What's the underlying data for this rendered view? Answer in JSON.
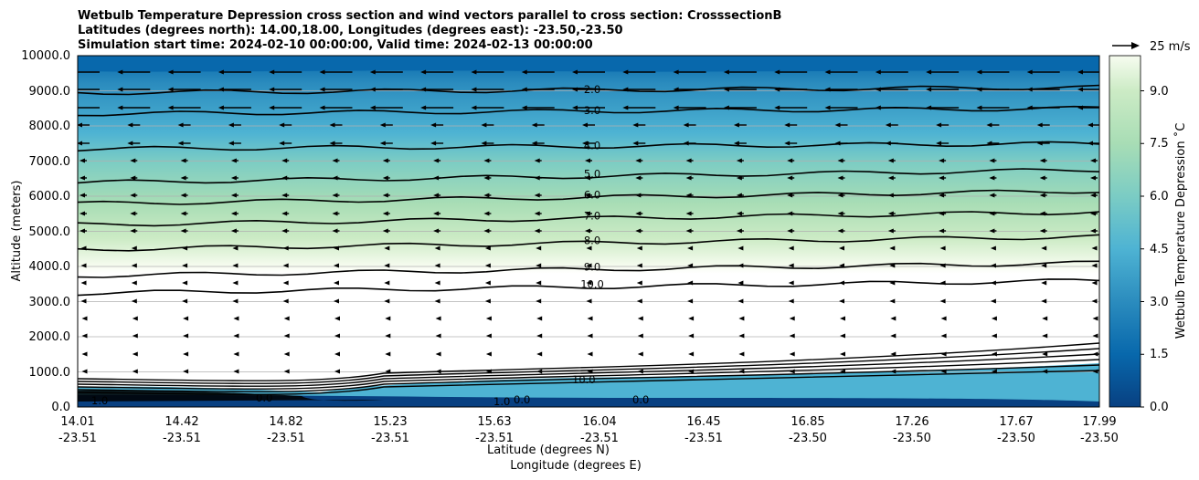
{
  "chart_data": {
    "type": "contour",
    "title_lines": [
      "Wetbulb Temperature Depression cross section and wind vectors parallel to cross section: CrosssectionB",
      "Latitudes (degrees north): 14.00,18.00, Longitudes (degrees east): -23.50,-23.50",
      "Simulation start time: 2024-02-10 00:00:00, Valid time: 2024-02-13 00:00:00"
    ],
    "ylabel": "Altitude (meters)",
    "xlabel_lines": [
      "Latitude (degrees N)",
      "Longitude (degrees E)"
    ],
    "ylim": [
      0,
      10000
    ],
    "y_ticks": [
      "0.0",
      "1000.0",
      "2000.0",
      "3000.0",
      "4000.0",
      "5000.0",
      "6000.0",
      "7000.0",
      "8000.0",
      "9000.0",
      "10000.0"
    ],
    "x_ticks": [
      {
        "lat": "14.01",
        "lon": "-23.51"
      },
      {
        "lat": "14.42",
        "lon": "-23.51"
      },
      {
        "lat": "14.82",
        "lon": "-23.51"
      },
      {
        "lat": "15.23",
        "lon": "-23.51"
      },
      {
        "lat": "15.63",
        "lon": "-23.51"
      },
      {
        "lat": "16.04",
        "lon": "-23.51"
      },
      {
        "lat": "16.45",
        "lon": "-23.51"
      },
      {
        "lat": "16.85",
        "lon": "-23.50"
      },
      {
        "lat": "17.26",
        "lon": "-23.50"
      },
      {
        "lat": "17.67",
        "lon": "-23.50"
      },
      {
        "lat": "17.99",
        "lon": "-23.50"
      }
    ],
    "colorbar": {
      "label": "Wetbulb Temperature Depression ˚C",
      "range": [
        0,
        10
      ],
      "ticks": [
        "0.0",
        "1.5",
        "3.0",
        "4.5",
        "6.0",
        "7.5",
        "9.0"
      ],
      "colormap": "GnBu_r"
    },
    "contour_levels": [
      1.0,
      2.0,
      3.0,
      4.0,
      5.0,
      6.0,
      7.0,
      8.0,
      9.0,
      10.0
    ],
    "contour_labels": [
      "2.0",
      "3.0",
      "4.0",
      "5.0",
      "6.0",
      "7.0",
      "8.0",
      "9.0",
      "10.0"
    ],
    "contour_altitudes_m": {
      "2.0": 9100,
      "3.0": 8500,
      "4.0": 7500,
      "5.0": 6750,
      "6.0": 6150,
      "7.0": 5550,
      "8.0": 4850,
      "9.0": 4100,
      "10.0": 3600
    },
    "wind_key": "25 m/s",
    "low_level_labels": [
      "10.0",
      "0.0",
      "0.0",
      "1.0",
      "0.0",
      "1.0"
    ]
  }
}
